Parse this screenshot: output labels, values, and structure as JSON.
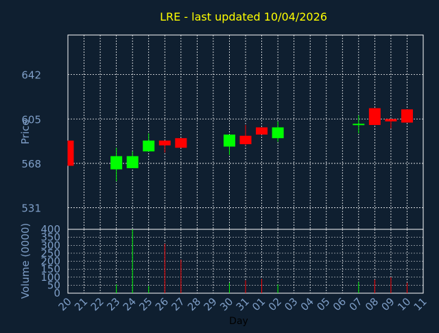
{
  "theme": {
    "background": "#0f1f30",
    "panel": "#0f1f30",
    "axis": "#ffffff",
    "grid": "#ffffff",
    "tick_text": "#7f9fc8",
    "title_color": "#ffff00",
    "up_color": "#00ff00",
    "down_color": "#ff0000"
  },
  "chart_data": [
    {
      "type": "candlestick",
      "title": "LRE - last updated 10/04/2026",
      "ylabel": "Price",
      "y_ticks": [
        531,
        568,
        605,
        642
      ],
      "ylim": [
        513,
        675
      ],
      "grid": true,
      "days": [
        "20",
        "21",
        "22",
        "23",
        "24",
        "25",
        "26",
        "27",
        "28",
        "29",
        "30",
        "31",
        "01",
        "02",
        "03",
        "04",
        "05",
        "06",
        "07",
        "08",
        "09",
        "10",
        "11"
      ],
      "candles": [
        {
          "day": "20",
          "open": 587,
          "high": 587,
          "low": 566,
          "close": 566
        },
        {
          "day": "23",
          "open": 563,
          "high": 581,
          "low": 553,
          "close": 574
        },
        {
          "day": "24",
          "open": 564,
          "high": 578,
          "low": 564,
          "close": 574
        },
        {
          "day": "25",
          "open": 578,
          "high": 593,
          "low": 578,
          "close": 587
        },
        {
          "day": "26",
          "open": 587,
          "high": 587,
          "low": 577,
          "close": 583
        },
        {
          "day": "27",
          "open": 589,
          "high": 589,
          "low": 581,
          "close": 581
        },
        {
          "day": "30",
          "open": 582,
          "high": 592,
          "low": 575,
          "close": 592
        },
        {
          "day": "31",
          "open": 591,
          "high": 600,
          "low": 583,
          "close": 584
        },
        {
          "day": "01",
          "open": 598,
          "high": 598,
          "low": 592,
          "close": 592
        },
        {
          "day": "02",
          "open": 589,
          "high": 603,
          "low": 586,
          "close": 598
        },
        {
          "day": "07",
          "open": 600,
          "high": 608,
          "low": 593,
          "close": 601
        },
        {
          "day": "08",
          "open": 614,
          "high": 614,
          "low": 600,
          "close": 600
        },
        {
          "day": "09",
          "open": 605,
          "high": 605,
          "low": 597,
          "close": 603
        },
        {
          "day": "10",
          "open": 613,
          "high": 613,
          "low": 602,
          "close": 602
        }
      ]
    },
    {
      "type": "bar",
      "ylabel": "Volume (0000)",
      "xlabel": "Day",
      "y_ticks": [
        0,
        50,
        100,
        150,
        200,
        250,
        300,
        350,
        400
      ],
      "ylim": [
        0,
        400
      ],
      "grid": true,
      "categories": [
        "20",
        "21",
        "22",
        "23",
        "24",
        "25",
        "26",
        "27",
        "28",
        "29",
        "30",
        "31",
        "01",
        "02",
        "03",
        "04",
        "05",
        "06",
        "07",
        "08",
        "09",
        "10",
        "11"
      ],
      "values": [
        0,
        0,
        0,
        55,
        400,
        45,
        310,
        210,
        0,
        0,
        65,
        80,
        90,
        55,
        0,
        0,
        0,
        0,
        70,
        85,
        100,
        65,
        0
      ],
      "direction": [
        "down",
        "none",
        "none",
        "up",
        "up",
        "up",
        "down",
        "down",
        "none",
        "none",
        "up",
        "down",
        "down",
        "up",
        "none",
        "none",
        "none",
        "none",
        "up",
        "down",
        "down",
        "down",
        "none"
      ]
    }
  ]
}
